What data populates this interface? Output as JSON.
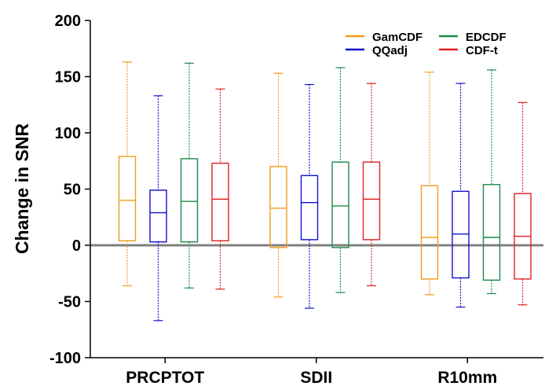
{
  "chart_data": {
    "type": "boxplot",
    "ylabel": "Change in SNR",
    "xlabel": "",
    "ylim": [
      -100,
      200
    ],
    "yticks": [
      -100,
      -50,
      0,
      50,
      100,
      150,
      200
    ],
    "categories": [
      "PRCPTOT",
      "SDII",
      "R10mm"
    ],
    "zero_line": 0,
    "legend_position": "top-right",
    "series": [
      {
        "name": "GamCDF",
        "color": "#F39A1E",
        "boxes": [
          {
            "whisker_low": -36,
            "q1": 4,
            "median": 40,
            "q3": 79,
            "whisker_high": 163
          },
          {
            "whisker_low": -46,
            "q1": -2,
            "median": 33,
            "q3": 70,
            "whisker_high": 153
          },
          {
            "whisker_low": -44,
            "q1": -30,
            "median": 7,
            "q3": 53,
            "whisker_high": 154
          }
        ]
      },
      {
        "name": "QQadj",
        "color": "#1010D0",
        "boxes": [
          {
            "whisker_low": -67,
            "q1": 3,
            "median": 29,
            "q3": 49,
            "whisker_high": 133
          },
          {
            "whisker_low": -56,
            "q1": 5,
            "median": 38,
            "q3": 62,
            "whisker_high": 143
          },
          {
            "whisker_low": -55,
            "q1": -29,
            "median": 10,
            "q3": 48,
            "whisker_high": 144
          }
        ]
      },
      {
        "name": "EDCDF",
        "color": "#1B8A4B",
        "boxes": [
          {
            "whisker_low": -38,
            "q1": 3,
            "median": 39,
            "q3": 77,
            "whisker_high": 162
          },
          {
            "whisker_low": -42,
            "q1": -2,
            "median": 35,
            "q3": 74,
            "whisker_high": 158
          },
          {
            "whisker_low": -43,
            "q1": -31,
            "median": 7,
            "q3": 54,
            "whisker_high": 156
          }
        ]
      },
      {
        "name": "CDF-t",
        "color": "#E02020",
        "boxes": [
          {
            "whisker_low": -39,
            "q1": 4,
            "median": 41,
            "q3": 73,
            "whisker_high": 139
          },
          {
            "whisker_low": -36,
            "q1": 5,
            "median": 41,
            "q3": 74,
            "whisker_high": 144
          },
          {
            "whisker_low": -53,
            "q1": -30,
            "median": 8,
            "q3": 46,
            "whisker_high": 127
          }
        ]
      }
    ]
  }
}
